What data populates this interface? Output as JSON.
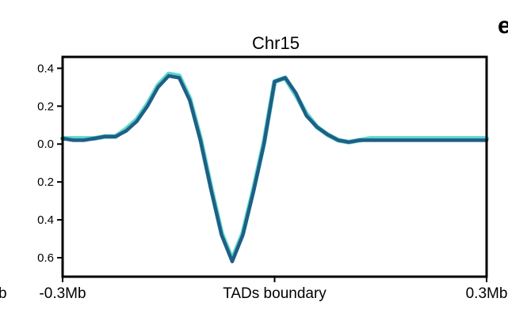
{
  "panel_letter": "e",
  "left_edge_fragment": "b",
  "chart_data": {
    "type": "line",
    "title": "Chr15",
    "xlabel": "",
    "ylabel": "",
    "x": [
      -0.3,
      -0.285,
      -0.27,
      -0.255,
      -0.24,
      -0.225,
      -0.21,
      -0.195,
      -0.18,
      -0.165,
      -0.15,
      -0.135,
      -0.12,
      -0.105,
      -0.09,
      -0.075,
      -0.06,
      -0.045,
      -0.03,
      -0.015,
      0.0,
      0.015,
      0.03,
      0.045,
      0.06,
      0.075,
      0.09,
      0.105,
      0.12,
      0.135,
      0.15,
      0.165,
      0.18,
      0.195,
      0.21,
      0.225,
      0.24,
      0.255,
      0.27,
      0.285,
      0.3
    ],
    "xlim": [
      -0.3,
      0.3
    ],
    "ylim": [
      -0.7,
      0.46
    ],
    "x_ticks": [
      {
        "value": -0.3,
        "label": "-0.3Mb"
      },
      {
        "value": 0.0,
        "label": "TADs boundary"
      },
      {
        "value": 0.3,
        "label": "0.3Mb"
      }
    ],
    "y_ticks": [
      {
        "value": 0.4,
        "label": "0.4"
      },
      {
        "value": 0.2,
        "label": "0.2"
      },
      {
        "value": 0.0,
        "label": "0.0"
      },
      {
        "value": -0.2,
        "label": "0.2"
      },
      {
        "value": -0.4,
        "label": "0.4"
      },
      {
        "value": -0.6,
        "label": "0.6"
      }
    ],
    "series": [
      {
        "color": "#5fd8cc",
        "values": [
          0.03,
          0.03,
          0.03,
          0.03,
          0.04,
          0.04,
          0.08,
          0.13,
          0.21,
          0.31,
          0.37,
          0.36,
          0.24,
          0.03,
          -0.23,
          -0.47,
          -0.61,
          -0.47,
          -0.24,
          0.01,
          0.33,
          0.35,
          0.26,
          0.16,
          0.09,
          0.05,
          0.02,
          0.01,
          0.02,
          0.03,
          0.03,
          0.03,
          0.03,
          0.03,
          0.03,
          0.03,
          0.03,
          0.03,
          0.03,
          0.03,
          0.03
        ]
      },
      {
        "color": "#1f5f86",
        "values": [
          0.03,
          0.02,
          0.02,
          0.03,
          0.04,
          0.04,
          0.07,
          0.12,
          0.2,
          0.3,
          0.36,
          0.35,
          0.23,
          0.02,
          -0.24,
          -0.48,
          -0.62,
          -0.48,
          -0.25,
          0.0,
          0.33,
          0.35,
          0.27,
          0.15,
          0.09,
          0.05,
          0.02,
          0.01,
          0.02,
          0.02,
          0.02,
          0.02,
          0.02,
          0.02,
          0.02,
          0.02,
          0.02,
          0.02,
          0.02,
          0.02,
          0.02
        ]
      }
    ],
    "grid": false,
    "legend": "none"
  }
}
